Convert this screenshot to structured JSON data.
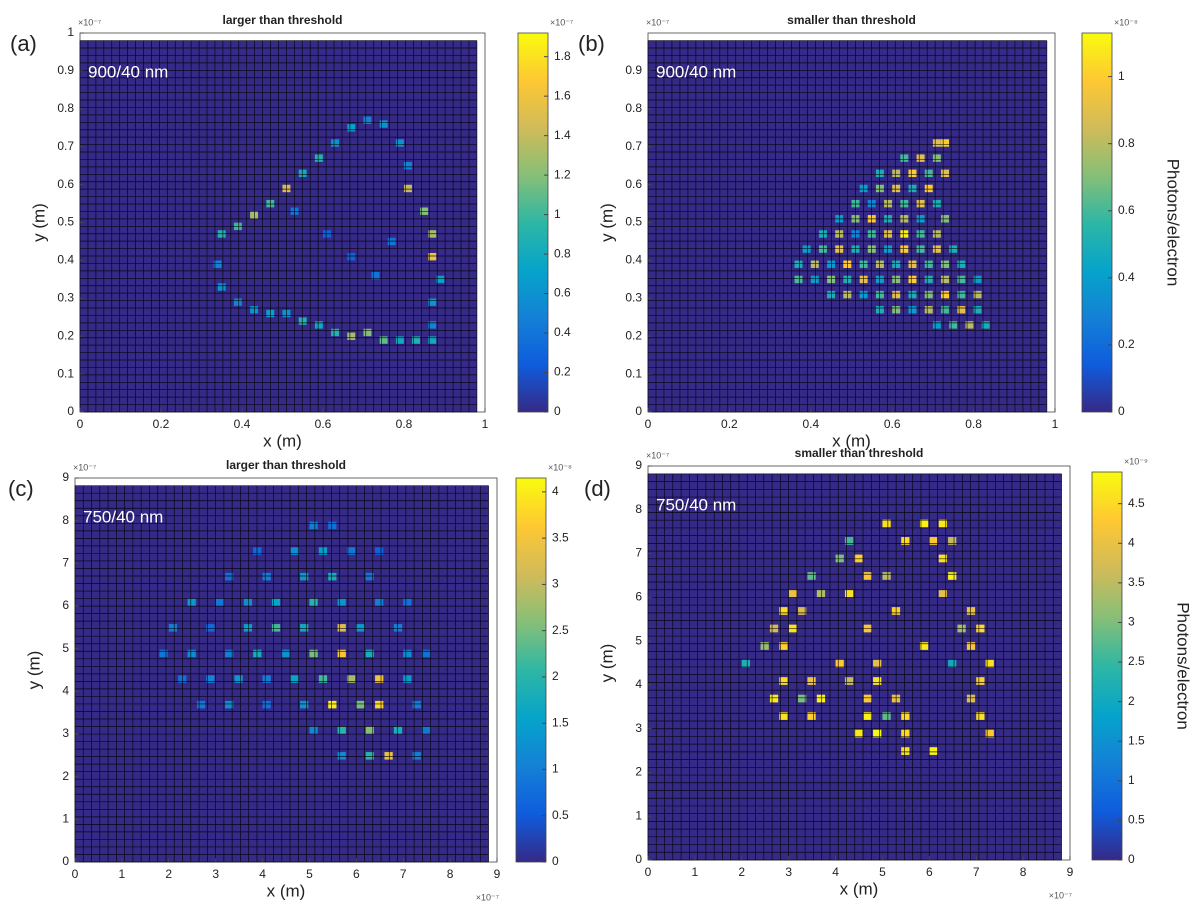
{
  "chart_data": [
    {
      "type": "heatmap",
      "panel_label": "(a)",
      "title": "larger than threshold",
      "annotation": "900/40 nm",
      "xlabel": "x (m)",
      "ylabel": "y (m)",
      "y_multiplier": "×10⁻⁷",
      "xlim": [
        0,
        1
      ],
      "ylim": [
        0,
        1
      ],
      "xticks": [
        0,
        0.2,
        0.4,
        0.6,
        0.8,
        1
      ],
      "yticks": [
        0,
        0.1,
        0.2,
        0.3,
        0.4,
        0.5,
        0.6,
        0.7,
        0.8,
        0.9,
        1
      ],
      "clim": [
        0,
        1.92
      ],
      "cticks": [
        0,
        0.2,
        0.4,
        0.6,
        0.8,
        1,
        1.2,
        1.4,
        1.6,
        1.8
      ],
      "colorbar_multiplier": "×10⁻⁷",
      "colormap": [
        "#352a87",
        "#0f5cdd",
        "#1481d6",
        "#06a4ca",
        "#2eb7a4",
        "#87bf77",
        "#d1bb59",
        "#fec832",
        "#f9fb0e"
      ],
      "x": [
        0.34,
        0.38,
        0.42,
        0.46,
        0.5,
        0.54,
        0.58,
        0.62,
        0.66,
        0.7,
        0.74,
        0.78,
        0.8,
        0.8,
        0.84,
        0.86,
        0.86,
        0.88,
        0.86,
        0.86,
        0.86,
        0.82,
        0.78,
        0.74,
        0.7,
        0.66,
        0.62,
        0.58,
        0.54,
        0.5,
        0.46,
        0.42,
        0.38,
        0.34,
        0.33,
        0.66,
        0.72,
        0.6,
        0.76,
        0.52
      ],
      "y": [
        0.46,
        0.48,
        0.51,
        0.54,
        0.58,
        0.62,
        0.66,
        0.7,
        0.74,
        0.76,
        0.75,
        0.7,
        0.64,
        0.58,
        0.52,
        0.46,
        0.4,
        0.34,
        0.28,
        0.22,
        0.18,
        0.18,
        0.18,
        0.18,
        0.2,
        0.19,
        0.2,
        0.22,
        0.23,
        0.25,
        0.25,
        0.26,
        0.28,
        0.32,
        0.38,
        0.4,
        0.35,
        0.46,
        0.44,
        0.52
      ],
      "values": [
        0.9,
        1.0,
        1.3,
        1.0,
        1.5,
        0.8,
        0.9,
        0.6,
        0.7,
        0.5,
        0.6,
        0.6,
        0.5,
        1.4,
        1.2,
        1.3,
        1.6,
        0.7,
        0.6,
        0.5,
        0.8,
        0.9,
        0.8,
        1.1,
        1.2,
        1.3,
        0.9,
        0.8,
        0.9,
        0.6,
        0.7,
        0.6,
        0.5,
        0.6,
        0.5,
        0.3,
        0.4,
        0.3,
        0.4,
        0.4
      ]
    },
    {
      "type": "heatmap",
      "panel_label": "(b)",
      "title": "smaller than threshold",
      "annotation": "900/40 nm",
      "xlabel": "x (m)",
      "ylabel": "y (m)",
      "y_multiplier": "×10⁻⁷",
      "xlim": [
        0,
        1
      ],
      "ylim": [
        0,
        1
      ],
      "xticks": [
        0,
        0.2,
        0.4,
        0.6,
        0.8,
        1
      ],
      "yticks": [
        0,
        0.1,
        0.2,
        0.3,
        0.4,
        0.5,
        0.6,
        0.7,
        0.8,
        0.9
      ],
      "clim": [
        0,
        1.13
      ],
      "cticks": [
        0,
        0.2,
        0.4,
        0.6,
        0.8,
        1
      ],
      "colorbar_multiplier": "×10⁻⁸",
      "colorbar_label": "Photons/electron",
      "colormap": [
        "#352a87",
        "#0f5cdd",
        "#1481d6",
        "#06a4ca",
        "#2eb7a4",
        "#87bf77",
        "#d1bb59",
        "#fec832",
        "#f9fb0e"
      ],
      "x": [
        0.7,
        0.72,
        0.62,
        0.66,
        0.7,
        0.56,
        0.6,
        0.64,
        0.68,
        0.72,
        0.52,
        0.56,
        0.6,
        0.64,
        0.68,
        0.5,
        0.54,
        0.58,
        0.62,
        0.66,
        0.7,
        0.46,
        0.5,
        0.54,
        0.58,
        0.62,
        0.66,
        0.72,
        0.42,
        0.46,
        0.5,
        0.54,
        0.58,
        0.62,
        0.66,
        0.7,
        0.38,
        0.42,
        0.46,
        0.5,
        0.54,
        0.58,
        0.62,
        0.66,
        0.7,
        0.74,
        0.36,
        0.4,
        0.44,
        0.48,
        0.52,
        0.56,
        0.6,
        0.64,
        0.68,
        0.72,
        0.76,
        0.36,
        0.4,
        0.44,
        0.48,
        0.52,
        0.56,
        0.6,
        0.64,
        0.68,
        0.72,
        0.76,
        0.8,
        0.44,
        0.48,
        0.52,
        0.56,
        0.6,
        0.64,
        0.68,
        0.72,
        0.76,
        0.8,
        0.56,
        0.6,
        0.64,
        0.68,
        0.72,
        0.76,
        0.8,
        0.7,
        0.74,
        0.78,
        0.82
      ],
      "y": [
        0.7,
        0.7,
        0.66,
        0.66,
        0.66,
        0.62,
        0.62,
        0.62,
        0.62,
        0.62,
        0.58,
        0.58,
        0.58,
        0.58,
        0.58,
        0.54,
        0.54,
        0.54,
        0.54,
        0.54,
        0.54,
        0.5,
        0.5,
        0.5,
        0.5,
        0.5,
        0.5,
        0.5,
        0.46,
        0.46,
        0.46,
        0.46,
        0.46,
        0.46,
        0.46,
        0.46,
        0.42,
        0.42,
        0.42,
        0.42,
        0.42,
        0.42,
        0.42,
        0.42,
        0.42,
        0.42,
        0.38,
        0.38,
        0.38,
        0.38,
        0.38,
        0.38,
        0.38,
        0.38,
        0.38,
        0.38,
        0.38,
        0.34,
        0.34,
        0.34,
        0.34,
        0.34,
        0.34,
        0.34,
        0.34,
        0.34,
        0.34,
        0.34,
        0.34,
        0.3,
        0.3,
        0.3,
        0.3,
        0.3,
        0.3,
        0.3,
        0.3,
        0.3,
        0.3,
        0.26,
        0.26,
        0.26,
        0.26,
        0.26,
        0.26,
        0.26,
        0.22,
        0.22,
        0.22,
        0.22
      ],
      "values": [
        0.9,
        1.0,
        0.6,
        0.9,
        0.7,
        0.5,
        0.8,
        1.0,
        0.6,
        0.9,
        0.4,
        0.7,
        0.9,
        0.5,
        1.0,
        0.6,
        0.3,
        0.8,
        0.6,
        0.9,
        0.5,
        0.4,
        0.7,
        1.0,
        0.5,
        0.8,
        0.4,
        0.7,
        0.5,
        0.8,
        0.3,
        0.6,
        0.9,
        1.1,
        0.6,
        0.8,
        0.4,
        0.6,
        0.9,
        0.5,
        0.7,
        0.4,
        1.0,
        0.6,
        0.9,
        0.5,
        0.5,
        0.8,
        0.4,
        1.0,
        0.6,
        0.8,
        0.5,
        0.9,
        0.6,
        0.7,
        0.5,
        0.6,
        0.4,
        0.7,
        0.5,
        0.9,
        0.4,
        0.7,
        1.0,
        0.5,
        0.8,
        0.6,
        0.4,
        0.5,
        0.8,
        0.4,
        0.6,
        0.9,
        0.5,
        0.7,
        1.0,
        0.6,
        0.8,
        0.5,
        0.7,
        0.4,
        0.8,
        0.6,
        0.9,
        0.5,
        0.4,
        0.6,
        0.8,
        0.5
      ]
    },
    {
      "type": "heatmap",
      "panel_label": "(c)",
      "title": "larger than threshold",
      "annotation": "750/40 nm",
      "xlabel": "x (m)",
      "ylabel": "y (m)",
      "y_multiplier": "×10⁻⁷",
      "x_multiplier": "×10⁻⁷",
      "xlim": [
        0,
        9
      ],
      "ylim": [
        0,
        9
      ],
      "xticks": [
        0,
        1,
        2,
        3,
        4,
        5,
        6,
        7,
        8,
        9
      ],
      "yticks": [
        0,
        1,
        2,
        3,
        4,
        5,
        6,
        7,
        8,
        9
      ],
      "clim": [
        0,
        4.15
      ],
      "cticks": [
        0,
        0.5,
        1,
        1.5,
        2,
        2.5,
        3,
        3.5,
        4
      ],
      "colorbar_multiplier": "×10⁻⁸",
      "colormap": [
        "#352a87",
        "#0f5cdd",
        "#1481d6",
        "#06a4ca",
        "#2eb7a4",
        "#87bf77",
        "#d1bb59",
        "#fec832",
        "#f9fb0e"
      ],
      "x": [
        5.0,
        5.4,
        3.8,
        4.6,
        5.2,
        5.8,
        6.4,
        3.2,
        4.0,
        4.8,
        5.4,
        6.2,
        2.4,
        3.0,
        3.6,
        4.2,
        5.0,
        5.6,
        6.4,
        7.0,
        2.0,
        2.8,
        3.6,
        4.2,
        4.8,
        5.6,
        6.0,
        6.8,
        1.8,
        2.4,
        3.2,
        3.8,
        4.4,
        5.0,
        5.6,
        6.2,
        7.0,
        7.4,
        2.2,
        2.8,
        3.4,
        4.0,
        4.6,
        5.2,
        5.8,
        6.4,
        7.0,
        2.6,
        3.2,
        4.0,
        4.8,
        5.4,
        6.0,
        6.4,
        7.2,
        5.0,
        5.6,
        6.2,
        6.8,
        7.4,
        5.6,
        6.2,
        6.6,
        7.2
      ],
      "y": [
        7.8,
        7.8,
        7.2,
        7.2,
        7.2,
        7.2,
        7.2,
        6.6,
        6.6,
        6.6,
        6.6,
        6.6,
        6.0,
        6.0,
        6.0,
        6.0,
        6.0,
        6.0,
        6.0,
        6.0,
        5.4,
        5.4,
        5.4,
        5.4,
        5.4,
        5.4,
        5.4,
        5.4,
        4.8,
        4.8,
        4.8,
        4.8,
        4.8,
        4.8,
        4.8,
        4.8,
        4.8,
        4.8,
        4.2,
        4.2,
        4.2,
        4.2,
        4.2,
        4.2,
        4.2,
        4.2,
        4.2,
        3.6,
        3.6,
        3.6,
        3.6,
        3.6,
        3.6,
        3.6,
        3.6,
        3.0,
        3.0,
        3.0,
        3.0,
        3.0,
        2.4,
        2.4,
        2.4,
        2.4
      ],
      "values": [
        1.0,
        0.8,
        0.7,
        1.2,
        1.5,
        0.9,
        0.6,
        0.8,
        1.0,
        1.4,
        1.8,
        0.9,
        1.4,
        0.9,
        1.2,
        1.6,
        2.0,
        1.3,
        1.0,
        0.8,
        1.0,
        0.7,
        1.5,
        2.2,
        1.7,
        3.2,
        1.4,
        1.0,
        0.9,
        1.2,
        1.0,
        1.8,
        1.3,
        2.5,
        3.6,
        1.8,
        1.2,
        0.8,
        0.8,
        1.1,
        1.4,
        1.0,
        1.6,
        2.2,
        2.8,
        3.5,
        1.5,
        0.9,
        1.2,
        0.8,
        1.3,
        4.0,
        2.5,
        3.8,
        1.0,
        1.1,
        2.0,
        2.6,
        1.8,
        0.9,
        1.2,
        2.0,
        3.4,
        1.0
      ]
    },
    {
      "type": "heatmap",
      "panel_label": "(d)",
      "title": "smaller than threshold",
      "annotation": "750/40 nm",
      "xlabel": "x (m)",
      "ylabel": "y (m)",
      "y_multiplier": "×10⁻⁷",
      "x_multiplier": "×10⁻⁷",
      "xlim": [
        0,
        9
      ],
      "ylim": [
        0,
        9
      ],
      "xticks": [
        0,
        1,
        2,
        3,
        4,
        5,
        6,
        7,
        8,
        9
      ],
      "yticks": [
        0,
        1,
        2,
        3,
        4,
        5,
        6,
        7,
        8,
        9
      ],
      "clim": [
        0,
        4.9
      ],
      "cticks": [
        0,
        0.5,
        1,
        1.5,
        2,
        2.5,
        3,
        3.5,
        4,
        4.5
      ],
      "colorbar_multiplier": "×10⁻⁹",
      "colorbar_label": "Photons/electron",
      "colormap": [
        "#352a87",
        "#0f5cdd",
        "#1481d6",
        "#06a4ca",
        "#2eb7a4",
        "#87bf77",
        "#d1bb59",
        "#fec832",
        "#f9fb0e"
      ],
      "x": [
        5.0,
        5.8,
        6.2,
        4.2,
        5.4,
        6.0,
        6.4,
        4.0,
        4.4,
        6.2,
        3.4,
        4.6,
        5.0,
        6.4,
        3.0,
        3.6,
        4.2,
        6.2,
        2.8,
        3.2,
        5.2,
        6.8,
        2.6,
        3.0,
        4.6,
        6.6,
        7.0,
        2.4,
        2.8,
        5.8,
        6.8,
        2.0,
        4.0,
        4.8,
        6.4,
        7.2,
        2.8,
        3.4,
        4.2,
        4.8,
        7.0,
        2.6,
        3.2,
        3.6,
        4.6,
        5.2,
        6.8,
        2.8,
        3.4,
        4.6,
        5.0,
        5.4,
        7.0,
        4.4,
        4.8,
        5.4,
        7.2,
        5.4,
        6.0
      ],
      "y": [
        7.6,
        7.6,
        7.6,
        7.2,
        7.2,
        7.2,
        7.2,
        6.8,
        6.8,
        6.8,
        6.4,
        6.4,
        6.4,
        6.4,
        6.0,
        6.0,
        6.0,
        6.0,
        5.6,
        5.6,
        5.6,
        5.6,
        5.2,
        5.2,
        5.2,
        5.2,
        5.2,
        4.8,
        4.8,
        4.8,
        4.8,
        4.4,
        4.4,
        4.4,
        4.4,
        4.4,
        4.0,
        4.0,
        4.0,
        4.0,
        4.0,
        3.6,
        3.6,
        3.6,
        3.6,
        3.6,
        3.6,
        3.2,
        3.2,
        3.2,
        3.2,
        3.2,
        3.2,
        2.8,
        2.8,
        2.8,
        2.8,
        2.4,
        2.4
      ],
      "values": [
        4.6,
        4.8,
        4.7,
        2.6,
        4.5,
        4.3,
        3.6,
        3.0,
        4.4,
        4.6,
        2.8,
        4.2,
        3.5,
        4.8,
        4.0,
        3.4,
        4.6,
        3.9,
        4.5,
        3.8,
        4.4,
        4.0,
        3.7,
        4.6,
        4.2,
        3.3,
        4.5,
        3.2,
        4.4,
        4.7,
        4.2,
        2.2,
        4.3,
        3.9,
        2.0,
        4.6,
        4.5,
        4.1,
        3.6,
        4.6,
        4.4,
        4.7,
        3.0,
        4.8,
        4.3,
        4.0,
        3.8,
        4.6,
        4.4,
        4.8,
        2.8,
        4.5,
        4.6,
        4.7,
        4.9,
        4.5,
        4.3,
        4.6,
        4.8
      ]
    }
  ]
}
